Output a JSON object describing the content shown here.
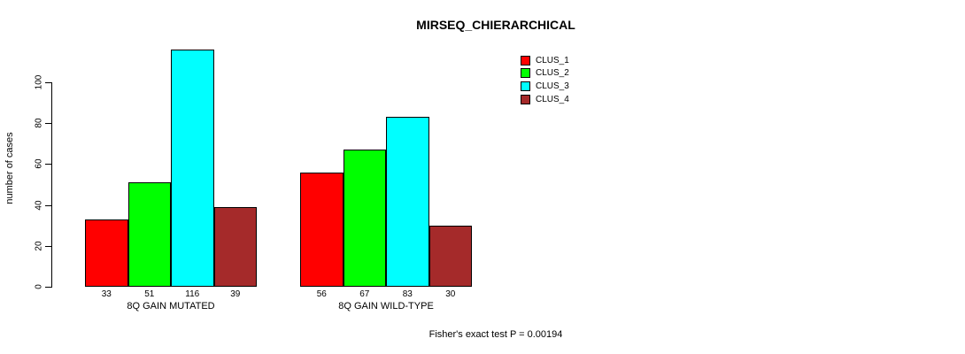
{
  "header": {
    "title": "MIRSEQ_CHIERARCHICAL"
  },
  "footer": {
    "text": "Fisher's exact test P = 0.00194"
  },
  "chart_data": {
    "type": "bar",
    "title": "MIRSEQ_CHIERARCHICAL",
    "xlabel": "",
    "ylabel": "number of cases",
    "yticks": [
      0,
      20,
      40,
      60,
      80,
      100
    ],
    "ylim": [
      0,
      116
    ],
    "grid": false,
    "legend_position": "top-right",
    "bar_value_labels": true,
    "categories": [
      "8Q GAIN MUTATED",
      "8Q GAIN WILD-TYPE"
    ],
    "series": [
      {
        "name": "CLUS_1",
        "color": "#ff0000",
        "values": [
          33,
          56
        ]
      },
      {
        "name": "CLUS_2",
        "color": "#00ff00",
        "values": [
          51,
          67
        ]
      },
      {
        "name": "CLUS_3",
        "color": "#00ffff",
        "values": [
          116,
          83
        ]
      },
      {
        "name": "CLUS_4",
        "color": "#a52a2a",
        "values": [
          39,
          30
        ]
      }
    ],
    "annotation": "Fisher's exact test P = 0.00194"
  }
}
